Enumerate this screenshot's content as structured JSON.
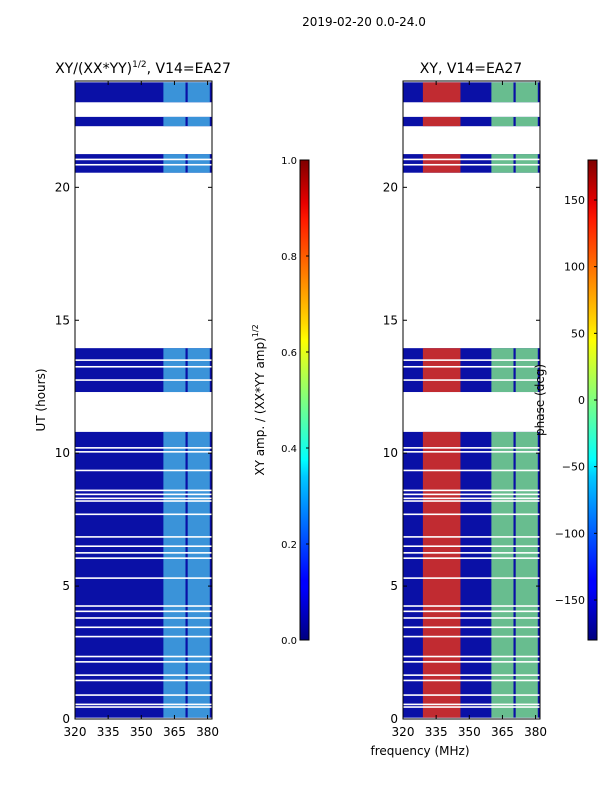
{
  "figure_title": "2019-02-20 0.0-24.0",
  "chart_data": [
    {
      "type": "heatmap",
      "title_prefix": "XY/(XX*YY)",
      "title_exponent": "1/2",
      "title_suffix": ", V14=EA27",
      "xlabel": "",
      "ylabel": "UT (hours)",
      "xlim": [
        320,
        382
      ],
      "ylim": [
        0,
        24
      ],
      "x_ticks": [
        320,
        335,
        350,
        365,
        380
      ],
      "y_ticks": [
        0,
        5,
        10,
        15,
        20
      ],
      "colorbar": {
        "label_prefix": "XY amp. / (XX*YY amp)",
        "label_exponent": "1/2",
        "range": [
          0.0,
          1.0
        ],
        "ticks": [
          "0.0",
          "0.2",
          "0.4",
          "0.6",
          "0.8",
          "1.0"
        ],
        "colormap": "jet"
      },
      "colors": {
        "background": "#0a10a6",
        "rfi_band": "#46b4e6"
      },
      "data_blocks_ut": [
        [
          0.05,
          10.8
        ],
        [
          12.3,
          13.95
        ],
        [
          20.55,
          21.25
        ],
        [
          22.3,
          22.65
        ],
        [
          23.2,
          23.95
        ]
      ],
      "flagged_lines_ut": [
        0.45,
        0.55,
        0.9,
        1.45,
        1.65,
        2.15,
        2.35,
        3.1,
        3.45,
        3.8,
        4.05,
        4.25,
        5.3,
        6.05,
        6.25,
        6.5,
        6.85,
        7.7,
        8.2,
        8.3,
        8.45,
        8.6,
        9.35,
        10.05,
        10.2,
        12.75,
        13.25,
        13.5,
        20.85,
        21.05
      ],
      "rfi_bands_mhz": [
        [
          360,
          370
        ],
        [
          371,
          381
        ]
      ]
    },
    {
      "type": "heatmap",
      "title": "XY, V14=EA27",
      "xlabel": "frequency (MHz)",
      "ylabel": "",
      "xlim": [
        320,
        382
      ],
      "ylim": [
        0,
        24
      ],
      "x_ticks": [
        320,
        335,
        350,
        365,
        380
      ],
      "y_ticks": [
        0,
        5,
        10,
        15,
        20
      ],
      "colorbar": {
        "label": "phase (deg)",
        "range": [
          -180,
          180
        ],
        "ticks": [
          "−150",
          "−100",
          "−50",
          "0",
          "50",
          "100",
          "150"
        ],
        "colormap": "jet"
      },
      "colors": {
        "background": "#0a10a6",
        "phase_region": "#e2301c",
        "rfi_band": "#7fe88a"
      },
      "data_blocks_ut": [
        [
          0.05,
          10.8
        ],
        [
          12.3,
          13.95
        ],
        [
          20.55,
          21.25
        ],
        [
          22.3,
          22.65
        ],
        [
          23.2,
          23.95
        ]
      ],
      "flagged_lines_ut": [
        0.45,
        0.55,
        0.9,
        1.45,
        1.65,
        2.15,
        2.35,
        3.1,
        3.45,
        3.8,
        4.05,
        4.25,
        5.3,
        6.05,
        6.25,
        6.5,
        6.85,
        7.7,
        8.2,
        8.3,
        8.45,
        8.6,
        9.35,
        10.05,
        10.2,
        12.75,
        13.25,
        13.5,
        20.85,
        21.05
      ],
      "phase_band_mhz": [
        329,
        346
      ],
      "rfi_bands_mhz": [
        [
          360,
          370
        ],
        [
          371,
          381
        ]
      ]
    }
  ]
}
